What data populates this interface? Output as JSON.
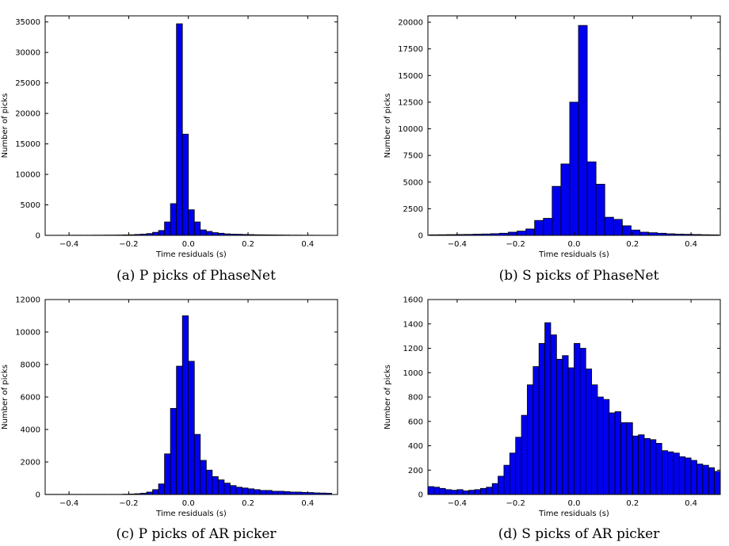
{
  "chart_data": [
    {
      "type": "bar",
      "caption": "(a) P picks of PhaseNet",
      "xlabel": "Time residuals (s)",
      "ylabel": "Number of picks",
      "xlim": [
        -0.48,
        0.5
      ],
      "ylim": [
        0,
        36000
      ],
      "bin_width": 0.02,
      "xticks": [
        "−0.4",
        "−0.2",
        "0.0",
        "0.2",
        "0.4"
      ],
      "xtick_values": [
        -0.4,
        -0.2,
        0.0,
        0.2,
        0.4
      ],
      "yticks": [
        "0",
        "5000",
        "10000",
        "15000",
        "20000",
        "25000",
        "30000",
        "35000"
      ],
      "ytick_values": [
        0,
        5000,
        10000,
        15000,
        20000,
        25000,
        30000,
        35000
      ],
      "bin_starts": [
        -0.48,
        -0.46,
        -0.44,
        -0.42,
        -0.4,
        -0.38,
        -0.36,
        -0.34,
        -0.32,
        -0.3,
        -0.28,
        -0.26,
        -0.24,
        -0.22,
        -0.2,
        -0.18,
        -0.16,
        -0.14,
        -0.12,
        -0.1,
        -0.08,
        -0.06,
        -0.04,
        -0.02,
        0.0,
        0.02,
        0.04,
        0.06,
        0.08,
        0.1,
        0.12,
        0.14,
        0.16,
        0.18,
        0.2,
        0.22,
        0.24,
        0.26,
        0.28,
        0.3,
        0.32,
        0.34,
        0.36,
        0.38,
        0.4,
        0.42,
        0.44,
        0.46
      ],
      "values": [
        20,
        20,
        20,
        20,
        30,
        30,
        30,
        30,
        40,
        40,
        50,
        50,
        60,
        80,
        100,
        150,
        200,
        300,
        500,
        800,
        2200,
        5200,
        34700,
        16600,
        4200,
        2200,
        900,
        650,
        450,
        350,
        250,
        200,
        180,
        150,
        130,
        100,
        90,
        80,
        70,
        60,
        50,
        40,
        40,
        30,
        30,
        25,
        20,
        20
      ],
      "bar_color": "#0000ee"
    },
    {
      "type": "bar",
      "caption": "(b) S picks of PhaseNet",
      "xlabel": "Time residuals (s)",
      "ylabel": "Number of picks",
      "xlim": [
        -0.5,
        0.5
      ],
      "ylim": [
        0,
        20600
      ],
      "bin_width": 0.03,
      "xticks": [
        "−0.4",
        "−0.2",
        "0.0",
        "0.2",
        "0.4"
      ],
      "xtick_values": [
        -0.4,
        -0.2,
        0.0,
        0.2,
        0.4
      ],
      "yticks": [
        "0",
        "2500",
        "5000",
        "7500",
        "10000",
        "12500",
        "15000",
        "17500",
        "20000"
      ],
      "ytick_values": [
        0,
        2500,
        5000,
        7500,
        10000,
        12500,
        15000,
        17500,
        20000
      ],
      "bin_starts": [
        -0.495,
        -0.465,
        -0.435,
        -0.405,
        -0.375,
        -0.345,
        -0.315,
        -0.285,
        -0.255,
        -0.225,
        -0.195,
        -0.165,
        -0.135,
        -0.105,
        -0.075,
        -0.045,
        -0.015,
        0.015,
        0.045,
        0.075,
        0.105,
        0.135,
        0.165,
        0.195,
        0.225,
        0.255,
        0.285,
        0.315,
        0.345,
        0.375,
        0.405,
        0.435,
        0.465
      ],
      "values": [
        50,
        60,
        70,
        80,
        90,
        110,
        130,
        160,
        200,
        300,
        400,
        600,
        1400,
        1600,
        4600,
        6700,
        12500,
        19700,
        6900,
        4800,
        1700,
        1500,
        900,
        500,
        300,
        250,
        200,
        150,
        120,
        100,
        80,
        60,
        50
      ],
      "bar_color": "#0000ee"
    },
    {
      "type": "bar",
      "caption": "(c) P picks of AR picker",
      "xlabel": "Time residuals (s)",
      "ylabel": "Number of picks",
      "xlim": [
        -0.48,
        0.5
      ],
      "ylim": [
        0,
        12000
      ],
      "bin_width": 0.02,
      "xticks": [
        "−0.4",
        "−0.2",
        "0.0",
        "0.2",
        "0.4"
      ],
      "xtick_values": [
        -0.4,
        -0.2,
        0.0,
        0.2,
        0.4
      ],
      "yticks": [
        "0",
        "2000",
        "4000",
        "6000",
        "8000",
        "10000",
        "12000"
      ],
      "ytick_values": [
        0,
        2000,
        4000,
        6000,
        8000,
        10000,
        12000
      ],
      "bin_starts": [
        -0.48,
        -0.46,
        -0.44,
        -0.42,
        -0.4,
        -0.38,
        -0.36,
        -0.34,
        -0.32,
        -0.3,
        -0.28,
        -0.26,
        -0.24,
        -0.22,
        -0.2,
        -0.18,
        -0.16,
        -0.14,
        -0.12,
        -0.1,
        -0.08,
        -0.06,
        -0.04,
        -0.02,
        0.0,
        0.02,
        0.04,
        0.06,
        0.08,
        0.1,
        0.12,
        0.14,
        0.16,
        0.18,
        0.2,
        0.22,
        0.24,
        0.26,
        0.28,
        0.3,
        0.32,
        0.34,
        0.36,
        0.38,
        0.4,
        0.42,
        0.44,
        0.46
      ],
      "values": [
        10,
        10,
        10,
        10,
        10,
        10,
        10,
        10,
        10,
        10,
        10,
        10,
        10,
        20,
        30,
        50,
        80,
        150,
        300,
        650,
        2500,
        5300,
        7900,
        11000,
        8200,
        3700,
        2100,
        1500,
        1100,
        900,
        700,
        550,
        450,
        400,
        350,
        300,
        250,
        250,
        200,
        200,
        180,
        150,
        150,
        130,
        120,
        100,
        90,
        80
      ],
      "bar_color": "#0000ee"
    },
    {
      "type": "bar",
      "caption": "(d) S picks of AR picker",
      "xlabel": "Time residuals (s)",
      "ylabel": "Number of picks",
      "xlim": [
        -0.5,
        0.5
      ],
      "ylim": [
        0,
        1600
      ],
      "bin_width": 0.02,
      "xticks": [
        "−0.4",
        "−0.2",
        "0.0",
        "0.2",
        "0.4"
      ],
      "xtick_values": [
        -0.4,
        -0.2,
        0.0,
        0.2,
        0.4
      ],
      "yticks": [
        "0",
        "200",
        "400",
        "600",
        "800",
        "1000",
        "1200",
        "1400",
        "1600"
      ],
      "ytick_values": [
        0,
        200,
        400,
        600,
        800,
        1000,
        1200,
        1400,
        1600
      ],
      "bin_starts": [
        -0.5,
        -0.48,
        -0.46,
        -0.44,
        -0.42,
        -0.4,
        -0.38,
        -0.36,
        -0.34,
        -0.32,
        -0.3,
        -0.28,
        -0.26,
        -0.24,
        -0.22,
        -0.2,
        -0.18,
        -0.16,
        -0.14,
        -0.12,
        -0.1,
        -0.08,
        -0.06,
        -0.04,
        -0.02,
        0.0,
        0.02,
        0.04,
        0.06,
        0.08,
        0.1,
        0.12,
        0.14,
        0.16,
        0.18,
        0.2,
        0.22,
        0.24,
        0.26,
        0.28,
        0.3,
        0.32,
        0.34,
        0.36,
        0.38,
        0.4,
        0.42,
        0.44,
        0.46,
        0.48
      ],
      "values": [
        65,
        60,
        50,
        40,
        35,
        40,
        30,
        35,
        40,
        50,
        60,
        90,
        150,
        240,
        340,
        470,
        650,
        900,
        1050,
        1240,
        1410,
        1310,
        1110,
        1140,
        1040,
        1240,
        1200,
        1030,
        900,
        800,
        780,
        670,
        680,
        590,
        590,
        480,
        490,
        460,
        450,
        420,
        360,
        350,
        340,
        310,
        300,
        280,
        250,
        240,
        220,
        190
      ],
      "bar_color": "#0000ee"
    }
  ]
}
